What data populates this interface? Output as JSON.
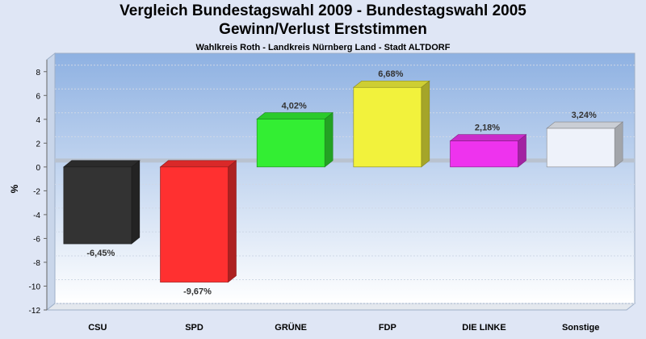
{
  "chart_data": {
    "type": "bar",
    "title": "Vergleich Bundestagswahl 2009 - Bundestagswahl 2005",
    "subtitle": "Gewinn/Verlust Erststimmen",
    "caption": "Wahlkreis Roth - Landkreis Nürnberg Land - Stadt ALTDORF",
    "ylabel": "%",
    "xlabel": "",
    "ylim": [
      -12,
      9
    ],
    "yticks": [
      "8",
      "6",
      "4",
      "2",
      "0",
      "-2",
      "-4",
      "-6",
      "-8",
      "-10",
      "-12"
    ],
    "grid": true,
    "categories": [
      "CSU",
      "SPD",
      "GRÜNE",
      "FDP",
      "DIE LINKE",
      "Sonstige"
    ],
    "values": [
      -6.45,
      -9.67,
      4.02,
      6.68,
      2.18,
      3.24
    ],
    "value_labels": [
      "-6,45%",
      "-9,67%",
      "4,02%",
      "6,68%",
      "2,18%",
      "3,24%"
    ],
    "colors": [
      "#333333",
      "#ff3030",
      "#33ee33",
      "#f2f23c",
      "#ee33ee",
      "#eef2fa"
    ]
  }
}
